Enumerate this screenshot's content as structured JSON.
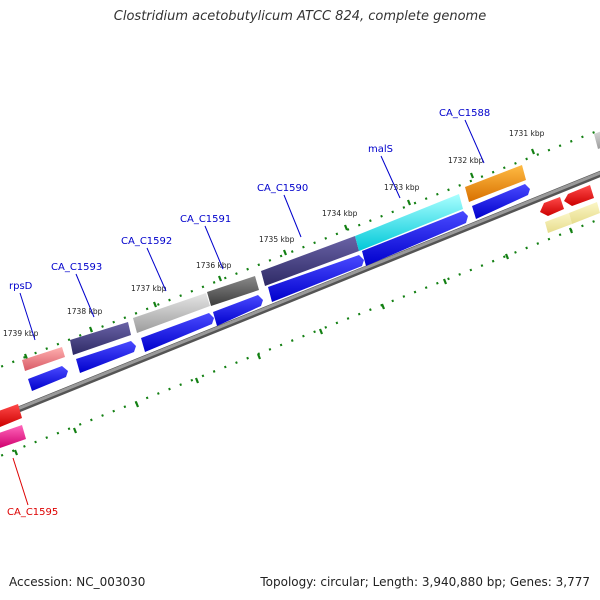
{
  "title": "Clostridium acetobutylicum ATCC 824, complete genome",
  "footer": {
    "accession": "Accession: NC_003030",
    "summary": "Topology: circular; Length: 3,940,880 bp; Genes: 3,777"
  },
  "colors": {
    "label_blue": "#0000cc",
    "label_red": "#dd0000",
    "cds_blue": "#0000ee",
    "backbone": "#808080",
    "tick_green": "#138013"
  },
  "scale_labels": [
    "1731 kbp",
    "1732 kbp",
    "1733 kbp",
    "1734 kbp",
    "1735 kbp",
    "1736 kbp",
    "1737 kbp",
    "1738 kbp",
    "1739 kbp"
  ],
  "gene_labels": [
    "CA_C1588",
    "malS",
    "CA_C1590",
    "CA_C1591",
    "CA_C1592",
    "CA_C1593",
    "rpsD",
    "CA_C1595"
  ]
}
